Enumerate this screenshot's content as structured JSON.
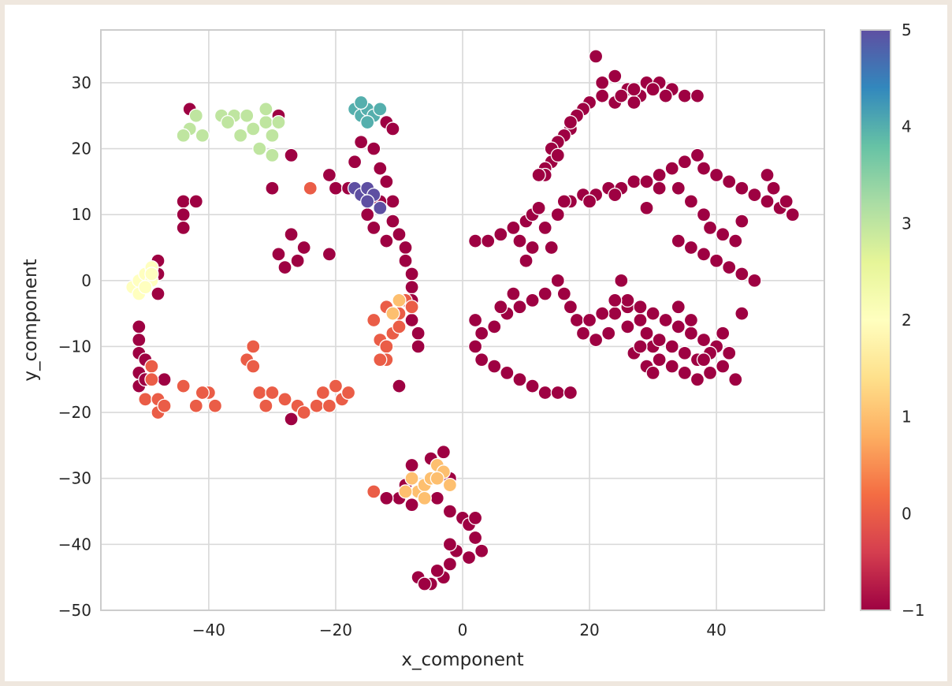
{
  "chart_data": {
    "type": "scatter",
    "title": "",
    "xlabel": "x_component",
    "ylabel": "y_component",
    "xlim": [
      -57,
      57
    ],
    "ylim": [
      -50,
      38
    ],
    "x_ticks": [
      -40,
      -20,
      0,
      20,
      40
    ],
    "x_tick_labels": [
      "−40",
      "−20",
      "0",
      "20",
      "40"
    ],
    "y_ticks": [
      30,
      20,
      10,
      0,
      -10,
      -20,
      -30,
      -40,
      -50
    ],
    "y_tick_labels": [
      "30",
      "20",
      "10",
      "0",
      "−10",
      "−20",
      "−30",
      "−40",
      "−50"
    ],
    "grid": true,
    "colormap": "Spectral",
    "color_range": [
      -1,
      5
    ],
    "colorbar_ticks": [
      5,
      4,
      3,
      2,
      1,
      0,
      -1
    ],
    "colorbar_tick_labels": [
      "5",
      "4",
      "3",
      "2",
      "1",
      "0",
      "−1"
    ],
    "marker_edge_color": "#ffffff",
    "clusters": [
      {
        "label": -1,
        "points": [
          [
            21,
            34
          ],
          [
            22,
            30
          ],
          [
            24,
            31
          ],
          [
            26,
            29
          ],
          [
            28,
            28
          ],
          [
            29,
            30
          ],
          [
            31,
            30
          ],
          [
            33,
            29
          ],
          [
            35,
            28
          ],
          [
            37,
            28
          ],
          [
            20,
            27
          ],
          [
            19,
            26
          ],
          [
            18,
            25
          ],
          [
            17,
            23
          ],
          [
            16,
            22
          ],
          [
            15,
            21
          ],
          [
            14,
            20
          ],
          [
            14,
            18
          ],
          [
            13,
            17
          ],
          [
            13,
            16
          ],
          [
            24,
            27
          ],
          [
            27,
            27
          ],
          [
            30,
            29
          ],
          [
            32,
            28
          ],
          [
            22,
            28
          ],
          [
            25,
            28
          ],
          [
            27,
            29
          ],
          [
            17,
            24
          ],
          [
            15,
            19
          ],
          [
            12,
            16
          ]
        ]
      },
      {
        "label": -1,
        "points": [
          [
            2,
            6
          ],
          [
            4,
            6
          ],
          [
            6,
            7
          ],
          [
            8,
            8
          ],
          [
            10,
            9
          ],
          [
            11,
            10
          ],
          [
            12,
            11
          ],
          [
            9,
            6
          ],
          [
            11,
            5
          ],
          [
            13,
            8
          ],
          [
            15,
            10
          ],
          [
            17,
            12
          ],
          [
            19,
            13
          ],
          [
            21,
            13
          ],
          [
            23,
            14
          ],
          [
            25,
            14
          ],
          [
            27,
            15
          ],
          [
            29,
            15
          ],
          [
            31,
            16
          ],
          [
            33,
            17
          ],
          [
            35,
            18
          ],
          [
            37,
            19
          ],
          [
            38,
            17
          ],
          [
            40,
            16
          ],
          [
            42,
            15
          ],
          [
            44,
            14
          ],
          [
            46,
            13
          ],
          [
            48,
            12
          ],
          [
            50,
            11
          ],
          [
            52,
            10
          ],
          [
            34,
            14
          ],
          [
            36,
            12
          ],
          [
            38,
            10
          ],
          [
            39,
            8
          ],
          [
            41,
            7
          ],
          [
            43,
            6
          ],
          [
            34,
            6
          ],
          [
            36,
            5
          ],
          [
            38,
            4
          ],
          [
            40,
            3
          ],
          [
            42,
            2
          ],
          [
            44,
            1
          ],
          [
            46,
            0
          ],
          [
            48,
            16
          ],
          [
            49,
            14
          ],
          [
            51,
            12
          ],
          [
            10,
            3
          ],
          [
            14,
            5
          ],
          [
            31,
            14
          ],
          [
            44,
            9
          ],
          [
            16,
            12
          ],
          [
            24,
            13
          ],
          [
            29,
            11
          ],
          [
            20,
            12
          ]
        ]
      },
      {
        "label": -1,
        "points": [
          [
            2,
            -6
          ],
          [
            3,
            -8
          ],
          [
            5,
            -7
          ],
          [
            7,
            -5
          ],
          [
            9,
            -4
          ],
          [
            11,
            -3
          ],
          [
            13,
            -2
          ],
          [
            2,
            -10
          ],
          [
            3,
            -12
          ],
          [
            5,
            -13
          ],
          [
            7,
            -14
          ],
          [
            9,
            -15
          ],
          [
            11,
            -16
          ],
          [
            13,
            -17
          ],
          [
            15,
            -17
          ],
          [
            17,
            -17
          ],
          [
            15,
            0
          ],
          [
            16,
            -2
          ],
          [
            17,
            -4
          ],
          [
            18,
            -6
          ],
          [
            19,
            -8
          ],
          [
            21,
            -9
          ],
          [
            23,
            -8
          ],
          [
            24,
            -5
          ],
          [
            25,
            0
          ],
          [
            26,
            -4
          ],
          [
            28,
            -6
          ],
          [
            29,
            -8
          ],
          [
            30,
            -10
          ],
          [
            31,
            -12
          ],
          [
            33,
            -13
          ],
          [
            35,
            -14
          ],
          [
            37,
            -15
          ],
          [
            39,
            -14
          ],
          [
            41,
            -13
          ],
          [
            42,
            -11
          ],
          [
            40,
            -10
          ],
          [
            38,
            -9
          ],
          [
            36,
            -8
          ],
          [
            34,
            -7
          ],
          [
            32,
            -6
          ],
          [
            30,
            -5
          ],
          [
            28,
            -4
          ],
          [
            26,
            -3
          ],
          [
            27,
            -11
          ],
          [
            29,
            -13
          ],
          [
            31,
            -9
          ],
          [
            33,
            -10
          ],
          [
            35,
            -11
          ],
          [
            37,
            -12
          ],
          [
            39,
            -11
          ],
          [
            43,
            -15
          ],
          [
            8,
            -2
          ],
          [
            6,
            -4
          ],
          [
            20,
            -6
          ],
          [
            22,
            -5
          ],
          [
            36,
            -6
          ],
          [
            34,
            -4
          ],
          [
            24,
            -3
          ],
          [
            26,
            -7
          ],
          [
            28,
            -10
          ],
          [
            30,
            -14
          ],
          [
            41,
            -8
          ],
          [
            44,
            -5
          ],
          [
            38,
            -12
          ]
        ]
      },
      {
        "label": -1,
        "points": [
          [
            -43,
            26
          ],
          [
            -29,
            25
          ],
          [
            -27,
            19
          ],
          [
            -30,
            14
          ],
          [
            -44,
            12
          ],
          [
            -44,
            10
          ],
          [
            -42,
            12
          ],
          [
            -44,
            8
          ],
          [
            -27,
            7
          ],
          [
            -25,
            5
          ],
          [
            -26,
            3
          ],
          [
            -28,
            2
          ],
          [
            -29,
            4
          ],
          [
            -21,
            4
          ],
          [
            -20,
            14
          ],
          [
            -21,
            16
          ],
          [
            -18,
            14
          ],
          [
            -17,
            18
          ],
          [
            -14,
            20
          ],
          [
            -12,
            24
          ],
          [
            -11,
            23
          ],
          [
            -16,
            21
          ],
          [
            -13,
            17
          ],
          [
            -12,
            15
          ],
          [
            -11,
            12
          ],
          [
            -11,
            9
          ],
          [
            -10,
            7
          ],
          [
            -9,
            5
          ],
          [
            -9,
            3
          ],
          [
            -8,
            1
          ],
          [
            -8,
            -1
          ],
          [
            -8,
            -3
          ],
          [
            -8,
            -6
          ],
          [
            -7,
            -8
          ],
          [
            -7,
            -10
          ],
          [
            -10,
            -16
          ],
          [
            -13,
            12
          ],
          [
            -15,
            10
          ],
          [
            -12,
            6
          ],
          [
            -14,
            8
          ],
          [
            -48,
            3
          ],
          [
            -48,
            1
          ],
          [
            -48,
            -2
          ],
          [
            -51,
            -7
          ],
          [
            -51,
            -9
          ],
          [
            -51,
            -11
          ],
          [
            -50,
            -12
          ],
          [
            -51,
            -14
          ],
          [
            -51,
            -16
          ],
          [
            -50,
            -15
          ],
          [
            -47,
            -15
          ],
          [
            -27,
            -21
          ],
          [
            -8,
            -28
          ],
          [
            -5,
            -27
          ],
          [
            -3,
            -26
          ],
          [
            -2,
            -30
          ],
          [
            -4,
            -33
          ],
          [
            -6,
            -33
          ],
          [
            -8,
            -34
          ],
          [
            -10,
            -33
          ],
          [
            -12,
            -33
          ],
          [
            -2,
            -35
          ],
          [
            0,
            -36
          ],
          [
            1,
            -37
          ],
          [
            2,
            -39
          ],
          [
            3,
            -41
          ],
          [
            2,
            -36
          ],
          [
            -1,
            -41
          ],
          [
            -2,
            -43
          ],
          [
            -3,
            -45
          ],
          [
            -5,
            -46
          ],
          [
            -7,
            -45
          ],
          [
            -6,
            -46
          ],
          [
            -4,
            -44
          ],
          [
            -2,
            -40
          ],
          [
            1,
            -42
          ],
          [
            -9,
            -31
          ]
        ]
      },
      {
        "label": 0,
        "points": [
          [
            -49,
            -13
          ],
          [
            -50,
            -18
          ],
          [
            -48,
            -18
          ],
          [
            -48,
            -20
          ],
          [
            -49,
            -15
          ],
          [
            -44,
            -16
          ],
          [
            -42,
            -19
          ],
          [
            -40,
            -17
          ],
          [
            -39,
            -19
          ],
          [
            -41,
            -17
          ],
          [
            -34,
            -12
          ],
          [
            -33,
            -13
          ],
          [
            -33,
            -10
          ],
          [
            -32,
            -17
          ],
          [
            -31,
            -19
          ],
          [
            -30,
            -17
          ],
          [
            -28,
            -18
          ],
          [
            -26,
            -19
          ],
          [
            -25,
            -20
          ],
          [
            -23,
            -19
          ],
          [
            -22,
            -17
          ],
          [
            -21,
            -19
          ],
          [
            -19,
            -18
          ],
          [
            -20,
            -16
          ],
          [
            -18,
            -17
          ],
          [
            -24,
            14
          ],
          [
            -14,
            -6
          ],
          [
            -13,
            -9
          ],
          [
            -12,
            -10
          ],
          [
            -11,
            -8
          ],
          [
            -10,
            -5
          ],
          [
            -9,
            -3
          ],
          [
            -8,
            -4
          ],
          [
            -12,
            -12
          ],
          [
            -12,
            -4
          ],
          [
            -10,
            -7
          ],
          [
            -13,
            -12
          ],
          [
            -14,
            -32
          ],
          [
            -47,
            -19
          ]
        ]
      },
      {
        "label": 1,
        "points": [
          [
            -8,
            -30
          ],
          [
            -7,
            -32
          ],
          [
            -6,
            -31
          ],
          [
            -5,
            -30
          ],
          [
            -4,
            -28
          ],
          [
            -3,
            -29
          ],
          [
            -2,
            -31
          ],
          [
            -6,
            -33
          ],
          [
            -9,
            -32
          ],
          [
            -4,
            -30
          ],
          [
            -11,
            -5
          ],
          [
            -10,
            -3
          ]
        ]
      },
      {
        "label": 2,
        "points": [
          [
            -52,
            -1
          ],
          [
            -51,
            0
          ],
          [
            -50,
            1
          ],
          [
            -49,
            2
          ],
          [
            -49,
            0
          ],
          [
            -51,
            -2
          ],
          [
            -50,
            -1
          ],
          [
            -49,
            1
          ]
        ]
      },
      {
        "label": 3,
        "points": [
          [
            -42,
            25
          ],
          [
            -43,
            23
          ],
          [
            -41,
            22
          ],
          [
            -38,
            25
          ],
          [
            -36,
            25
          ],
          [
            -34,
            25
          ],
          [
            -33,
            23
          ],
          [
            -31,
            24
          ],
          [
            -30,
            22
          ],
          [
            -32,
            20
          ],
          [
            -30,
            19
          ],
          [
            -29,
            24
          ],
          [
            -35,
            22
          ],
          [
            -37,
            24
          ],
          [
            -44,
            22
          ],
          [
            -31,
            26
          ]
        ]
      },
      {
        "label": 4,
        "points": [
          [
            -17,
            26
          ],
          [
            -16,
            25
          ],
          [
            -15,
            26
          ],
          [
            -14,
            25
          ],
          [
            -16,
            27
          ],
          [
            -15,
            24
          ],
          [
            -13,
            26
          ]
        ]
      },
      {
        "label": 5,
        "points": [
          [
            -17,
            14
          ],
          [
            -16,
            13
          ],
          [
            -15,
            14
          ],
          [
            -14,
            13
          ],
          [
            -15,
            12
          ],
          [
            -13,
            11
          ]
        ]
      }
    ]
  }
}
